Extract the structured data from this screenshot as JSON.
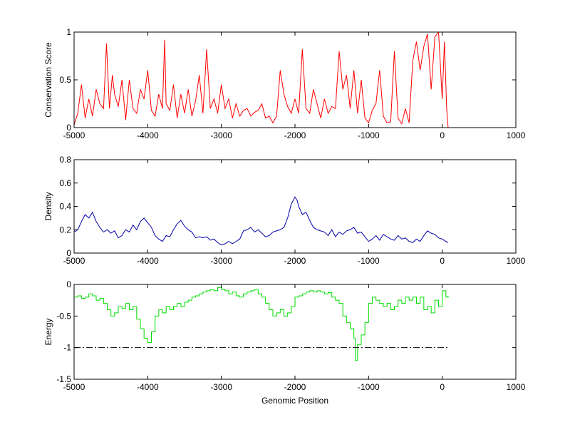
{
  "figure": {
    "background": "#ffffff",
    "axes_color": "#000000"
  },
  "chart_data": [
    {
      "type": "line",
      "title": "",
      "xlabel": "",
      "ylabel": "Conservation Score",
      "xlim": [
        -5000,
        1000
      ],
      "ylim": [
        0,
        1
      ],
      "xticks": [
        -5000,
        -4000,
        -3000,
        -2000,
        -1000,
        0,
        1000
      ],
      "yticks": [
        0,
        0.5,
        1
      ],
      "xtick_labels": [
        "-5000",
        "-4000",
        "-3000",
        "-2000",
        "-1000",
        "0",
        "1000"
      ],
      "ytick_labels": [
        "0",
        "0.5",
        "1"
      ],
      "grid": false,
      "series": [
        {
          "color": "#ff0000",
          "x": [
            -5000,
            -4950,
            -4900,
            -4850,
            -4800,
            -4750,
            -4700,
            -4650,
            -4600,
            -4560,
            -4520,
            -4480,
            -4450,
            -4400,
            -4350,
            -4300,
            -4250,
            -4200,
            -4150,
            -4100,
            -4050,
            -4000,
            -3950,
            -3900,
            -3850,
            -3800,
            -3770,
            -3750,
            -3700,
            -3650,
            -3600,
            -3550,
            -3500,
            -3450,
            -3400,
            -3350,
            -3300,
            -3250,
            -3200,
            -3150,
            -3100,
            -3050,
            -3000,
            -2950,
            -2900,
            -2850,
            -2800,
            -2750,
            -2700,
            -2650,
            -2600,
            -2550,
            -2500,
            -2450,
            -2400,
            -2350,
            -2300,
            -2250,
            -2200,
            -2150,
            -2100,
            -2050,
            -2000,
            -1950,
            -1900,
            -1850,
            -1800,
            -1750,
            -1700,
            -1650,
            -1600,
            -1550,
            -1500,
            -1450,
            -1400,
            -1350,
            -1300,
            -1250,
            -1200,
            -1150,
            -1100,
            -1050,
            -1000,
            -950,
            -900,
            -850,
            -800,
            -750,
            -700,
            -650,
            -600,
            -550,
            -500,
            -450,
            -400,
            -350,
            -300,
            -250,
            -200,
            -150,
            -100,
            -50,
            0,
            30,
            60,
            80
          ],
          "y": [
            0.03,
            0.15,
            0.45,
            0.1,
            0.3,
            0.12,
            0.4,
            0.25,
            0.2,
            0.88,
            0.2,
            0.55,
            0.35,
            0.22,
            0.5,
            0.08,
            0.5,
            0.2,
            0.15,
            0.4,
            0.3,
            0.6,
            0.18,
            0.12,
            0.35,
            0.2,
            0.92,
            0.25,
            0.18,
            0.45,
            0.1,
            0.35,
            0.15,
            0.4,
            0.12,
            0.28,
            0.55,
            0.15,
            0.82,
            0.2,
            0.3,
            0.15,
            0.45,
            0.2,
            0.3,
            0.1,
            0.25,
            0.12,
            0.18,
            0.2,
            0.12,
            0.16,
            0.18,
            0.25,
            0.1,
            0.12,
            0.05,
            0.12,
            0.6,
            0.35,
            0.22,
            0.15,
            0.3,
            0.15,
            0.82,
            0.2,
            0.15,
            0.4,
            0.25,
            0.1,
            0.3,
            0.15,
            0.22,
            0.2,
            0.8,
            0.4,
            0.55,
            0.2,
            0.6,
            0.15,
            0.5,
            0.1,
            0.05,
            0.18,
            0.25,
            0.6,
            0.12,
            0.05,
            0.06,
            0.8,
            0.1,
            0.04,
            0.2,
            0.05,
            0.7,
            0.9,
            0.6,
            0.85,
            0.98,
            0.4,
            0.95,
            1.0,
            0.3,
            0.9,
            0.2,
            0.0
          ]
        }
      ]
    },
    {
      "type": "line",
      "title": "",
      "xlabel": "",
      "ylabel": "Density",
      "xlim": [
        -5000,
        1000
      ],
      "ylim": [
        0,
        0.8
      ],
      "xticks": [
        -5000,
        -4000,
        -3000,
        -2000,
        -1000,
        0,
        1000
      ],
      "yticks": [
        0,
        0.2,
        0.4,
        0.6,
        0.8
      ],
      "xtick_labels": [
        "-5000",
        "-4000",
        "-3000",
        "-2000",
        "-1000",
        "0",
        "1000"
      ],
      "ytick_labels": [
        "0",
        "0.2",
        "0.4",
        "0.6",
        "0.8"
      ],
      "grid": false,
      "series": [
        {
          "color": "#0000aa",
          "x": [
            -5000,
            -4950,
            -4900,
            -4850,
            -4800,
            -4750,
            -4700,
            -4650,
            -4600,
            -4550,
            -4500,
            -4450,
            -4400,
            -4350,
            -4300,
            -4250,
            -4200,
            -4150,
            -4100,
            -4050,
            -4000,
            -3950,
            -3900,
            -3850,
            -3800,
            -3750,
            -3700,
            -3650,
            -3600,
            -3550,
            -3500,
            -3450,
            -3400,
            -3350,
            -3300,
            -3250,
            -3200,
            -3150,
            -3100,
            -3050,
            -3000,
            -2950,
            -2900,
            -2850,
            -2800,
            -2750,
            -2700,
            -2650,
            -2600,
            -2550,
            -2500,
            -2450,
            -2400,
            -2350,
            -2300,
            -2250,
            -2200,
            -2150,
            -2100,
            -2050,
            -2000,
            -1970,
            -1950,
            -1900,
            -1850,
            -1800,
            -1750,
            -1700,
            -1650,
            -1600,
            -1550,
            -1500,
            -1450,
            -1400,
            -1350,
            -1300,
            -1250,
            -1200,
            -1150,
            -1100,
            -1050,
            -1000,
            -950,
            -900,
            -850,
            -800,
            -750,
            -700,
            -650,
            -600,
            -550,
            -500,
            -450,
            -400,
            -350,
            -300,
            -250,
            -200,
            -150,
            -100,
            -50,
            0,
            50,
            80
          ],
          "y": [
            0.18,
            0.2,
            0.27,
            0.33,
            0.3,
            0.35,
            0.27,
            0.22,
            0.18,
            0.2,
            0.17,
            0.19,
            0.13,
            0.15,
            0.2,
            0.18,
            0.24,
            0.2,
            0.27,
            0.3,
            0.26,
            0.22,
            0.15,
            0.12,
            0.1,
            0.15,
            0.14,
            0.2,
            0.25,
            0.28,
            0.23,
            0.2,
            0.18,
            0.13,
            0.14,
            0.13,
            0.14,
            0.11,
            0.12,
            0.09,
            0.07,
            0.08,
            0.1,
            0.08,
            0.1,
            0.12,
            0.19,
            0.2,
            0.22,
            0.18,
            0.2,
            0.17,
            0.14,
            0.15,
            0.18,
            0.19,
            0.2,
            0.22,
            0.3,
            0.42,
            0.48,
            0.45,
            0.4,
            0.33,
            0.35,
            0.28,
            0.22,
            0.2,
            0.19,
            0.18,
            0.15,
            0.2,
            0.14,
            0.18,
            0.16,
            0.19,
            0.2,
            0.22,
            0.17,
            0.18,
            0.14,
            0.1,
            0.12,
            0.15,
            0.11,
            0.16,
            0.14,
            0.12,
            0.11,
            0.15,
            0.12,
            0.13,
            0.1,
            0.09,
            0.12,
            0.1,
            0.15,
            0.19,
            0.17,
            0.16,
            0.13,
            0.12,
            0.1,
            0.09
          ]
        }
      ]
    },
    {
      "type": "line",
      "title": "",
      "xlabel": "Genomic Position",
      "ylabel": "Energy",
      "xlim": [
        -5000,
        1000
      ],
      "ylim": [
        -1.5,
        0
      ],
      "xticks": [
        -5000,
        -4000,
        -3000,
        -2000,
        -1000,
        0,
        1000
      ],
      "yticks": [
        -1.5,
        -1,
        -0.5,
        0
      ],
      "xtick_labels": [
        "-5000",
        "-4000",
        "-3000",
        "-2000",
        "-1000",
        "0",
        "1000"
      ],
      "ytick_labels": [
        "-1.5",
        "-1",
        "-0.5",
        "0"
      ],
      "grid": false,
      "series": [
        {
          "color": "#00dd00",
          "step": true,
          "x": [
            -5000,
            -4950,
            -4900,
            -4850,
            -4800,
            -4750,
            -4700,
            -4650,
            -4600,
            -4550,
            -4500,
            -4450,
            -4400,
            -4350,
            -4300,
            -4250,
            -4200,
            -4150,
            -4100,
            -4050,
            -4000,
            -3950,
            -3900,
            -3850,
            -3800,
            -3750,
            -3700,
            -3650,
            -3600,
            -3550,
            -3500,
            -3450,
            -3400,
            -3350,
            -3300,
            -3250,
            -3200,
            -3150,
            -3100,
            -3050,
            -3000,
            -2950,
            -2900,
            -2850,
            -2800,
            -2750,
            -2700,
            -2650,
            -2600,
            -2550,
            -2500,
            -2450,
            -2400,
            -2350,
            -2300,
            -2250,
            -2200,
            -2150,
            -2100,
            -2050,
            -2000,
            -1950,
            -1900,
            -1850,
            -1800,
            -1750,
            -1700,
            -1650,
            -1600,
            -1550,
            -1500,
            -1450,
            -1400,
            -1350,
            -1300,
            -1250,
            -1200,
            -1180,
            -1150,
            -1100,
            -1050,
            -1000,
            -950,
            -900,
            -850,
            -800,
            -750,
            -700,
            -650,
            -600,
            -550,
            -500,
            -450,
            -400,
            -350,
            -300,
            -250,
            -200,
            -150,
            -100,
            -50,
            0,
            50,
            80
          ],
          "y": [
            -0.2,
            -0.18,
            -0.22,
            -0.2,
            -0.15,
            -0.18,
            -0.25,
            -0.22,
            -0.3,
            -0.4,
            -0.5,
            -0.45,
            -0.35,
            -0.38,
            -0.3,
            -0.4,
            -0.35,
            -0.55,
            -0.7,
            -0.85,
            -0.92,
            -0.75,
            -0.5,
            -0.4,
            -0.45,
            -0.35,
            -0.4,
            -0.35,
            -0.3,
            -0.35,
            -0.28,
            -0.25,
            -0.2,
            -0.18,
            -0.15,
            -0.12,
            -0.1,
            -0.08,
            -0.1,
            -0.05,
            -0.08,
            -0.1,
            -0.15,
            -0.12,
            -0.18,
            -0.2,
            -0.15,
            -0.12,
            -0.1,
            -0.08,
            -0.15,
            -0.2,
            -0.3,
            -0.4,
            -0.5,
            -0.45,
            -0.4,
            -0.5,
            -0.45,
            -0.35,
            -0.2,
            -0.18,
            -0.15,
            -0.12,
            -0.1,
            -0.12,
            -0.1,
            -0.12,
            -0.15,
            -0.13,
            -0.2,
            -0.25,
            -0.3,
            -0.5,
            -0.6,
            -0.7,
            -0.85,
            -1.2,
            -0.95,
            -0.8,
            -0.6,
            -0.3,
            -0.2,
            -0.25,
            -0.3,
            -0.35,
            -0.3,
            -0.4,
            -0.35,
            -0.25,
            -0.3,
            -0.2,
            -0.25,
            -0.2,
            -0.3,
            -0.2,
            -0.4,
            -0.35,
            -0.45,
            -0.25,
            -0.35,
            -0.1,
            -0.2,
            -0.18
          ]
        },
        {
          "color": "#000000",
          "dash": "dash-dot",
          "x": [
            -5000,
            80
          ],
          "y": [
            -1,
            -1
          ]
        }
      ]
    }
  ]
}
